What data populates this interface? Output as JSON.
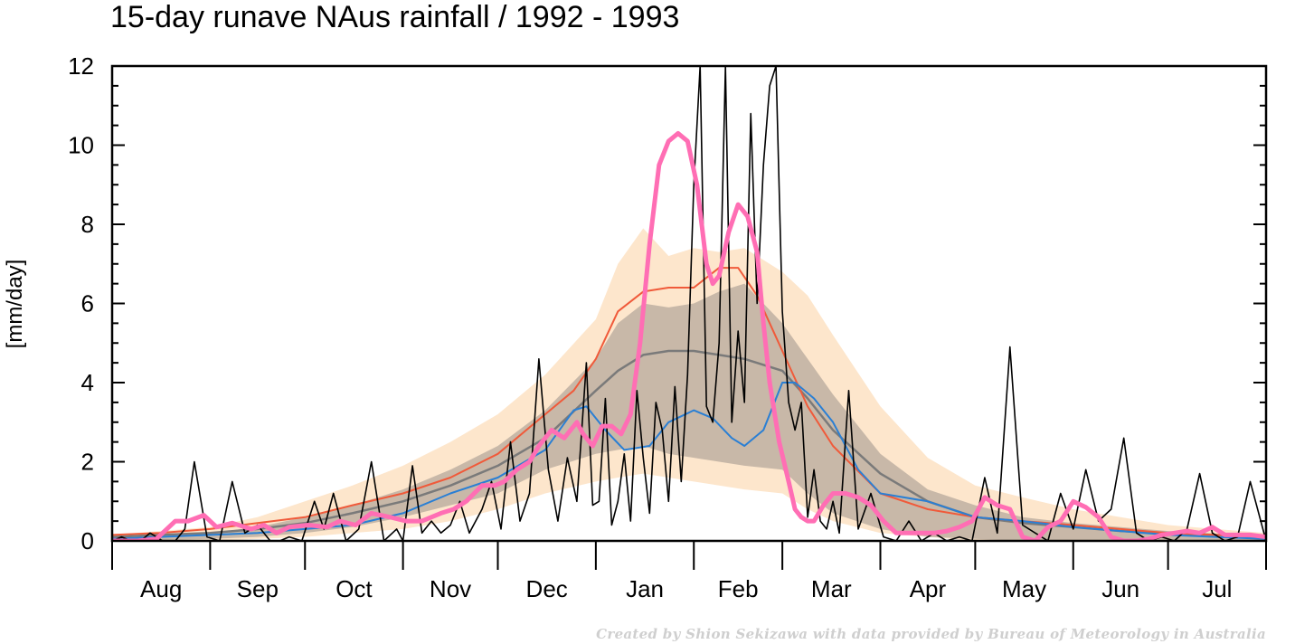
{
  "title": "15-day runave NAus rainfall  /  1992 - 1993",
  "credit": "Created by Shion Sekizawa with data provided by Bureau of Meteorology in Australia",
  "colors": {
    "outer_band": "#fde6cc",
    "inner_band": "#c8b8a8",
    "climatology": "#7a7a7a",
    "red_line": "#f05a3a",
    "blue_line": "#2a7fd4",
    "daily": "#000000",
    "runave": "#ff6eb4"
  },
  "chart_data": {
    "type": "line",
    "title": "15-day runave NAus rainfall  /  1992 - 1993",
    "xlabel": "",
    "ylabel": "[mm/day]",
    "ylim": [
      0,
      12
    ],
    "yticks": [
      0,
      2,
      4,
      6,
      8,
      10,
      12
    ],
    "xlim": [
      0,
      365
    ],
    "month_ticks": [
      0,
      31,
      61,
      92,
      122,
      153,
      184,
      212,
      243,
      273,
      304,
      334,
      365
    ],
    "month_labels": [
      "Aug",
      "Sep",
      "Oct",
      "Nov",
      "Dec",
      "Jan",
      "Feb",
      "Mar",
      "Apr",
      "May",
      "Jun",
      "Jul"
    ],
    "outer_band": {
      "x": [
        0,
        15,
        31,
        46,
        61,
        76,
        92,
        107,
        122,
        137,
        153,
        160,
        168,
        176,
        184,
        192,
        200,
        212,
        220,
        228,
        243,
        258,
        273,
        288,
        304,
        319,
        334,
        349,
        365
      ],
      "upper": [
        0.15,
        0.25,
        0.35,
        0.6,
        1.0,
        1.4,
        1.9,
        2.5,
        3.2,
        4.2,
        5.6,
        7.0,
        7.9,
        7.2,
        7.4,
        7.3,
        7.4,
        6.8,
        6.2,
        5.2,
        3.4,
        2.1,
        1.4,
        1.1,
        0.8,
        0.6,
        0.4,
        0.3,
        0.2
      ],
      "lower": [
        0.0,
        0.0,
        0.0,
        0.05,
        0.1,
        0.2,
        0.3,
        0.5,
        0.8,
        1.2,
        1.5,
        1.6,
        1.7,
        1.6,
        1.5,
        1.4,
        1.3,
        1.2,
        0.8,
        0.5,
        0.2,
        0.1,
        0.0,
        0.0,
        0.0,
        0.0,
        0.0,
        0.0,
        0.0
      ]
    },
    "inner_band": {
      "x": [
        0,
        15,
        31,
        46,
        61,
        76,
        92,
        107,
        122,
        137,
        153,
        160,
        168,
        176,
        184,
        192,
        200,
        212,
        220,
        228,
        243,
        258,
        273,
        288,
        304,
        319,
        334,
        349,
        365
      ],
      "upper": [
        0.08,
        0.12,
        0.2,
        0.35,
        0.6,
        0.9,
        1.3,
        1.8,
        2.4,
        3.3,
        4.6,
        5.5,
        6.0,
        5.9,
        6.0,
        6.3,
        6.5,
        5.5,
        4.6,
        3.7,
        2.2,
        1.3,
        0.9,
        0.6,
        0.45,
        0.35,
        0.25,
        0.18,
        0.12
      ],
      "lower": [
        0.0,
        0.02,
        0.05,
        0.1,
        0.2,
        0.35,
        0.6,
        0.9,
        1.2,
        1.8,
        2.2,
        2.3,
        2.4,
        2.2,
        2.1,
        2.0,
        1.9,
        1.8,
        1.2,
        0.7,
        0.3,
        0.1,
        0.05,
        0.0,
        0.0,
        0.0,
        0.0,
        0.0,
        0.0
      ]
    },
    "series": [
      {
        "key": "climatology",
        "x": [
          0,
          15,
          31,
          46,
          61,
          76,
          92,
          107,
          122,
          137,
          153,
          160,
          168,
          176,
          184,
          192,
          200,
          212,
          220,
          228,
          243,
          258,
          273,
          288,
          304,
          319,
          334,
          349,
          365
        ],
        "y": [
          0.1,
          0.15,
          0.2,
          0.3,
          0.45,
          0.7,
          1.0,
          1.4,
          1.9,
          2.6,
          3.8,
          4.3,
          4.7,
          4.8,
          4.8,
          4.7,
          4.6,
          4.3,
          3.6,
          2.8,
          1.7,
          1.0,
          0.6,
          0.45,
          0.35,
          0.25,
          0.2,
          0.15,
          0.1
        ]
      },
      {
        "key": "red_line",
        "x": [
          0,
          15,
          31,
          46,
          61,
          76,
          92,
          107,
          122,
          137,
          146,
          153,
          160,
          168,
          176,
          184,
          192,
          198,
          204,
          212,
          220,
          228,
          243,
          258,
          273,
          288,
          304,
          319,
          334,
          349,
          365
        ],
        "y": [
          0.15,
          0.2,
          0.3,
          0.45,
          0.6,
          0.9,
          1.2,
          1.6,
          2.2,
          3.2,
          3.8,
          4.6,
          5.8,
          6.3,
          6.4,
          6.4,
          6.9,
          6.9,
          6.2,
          4.8,
          3.4,
          2.4,
          1.2,
          0.8,
          0.6,
          0.5,
          0.4,
          0.3,
          0.2,
          0.15,
          0.1
        ]
      },
      {
        "key": "blue_line",
        "x": [
          0,
          15,
          31,
          46,
          61,
          76,
          92,
          107,
          122,
          137,
          146,
          150,
          156,
          162,
          170,
          176,
          184,
          190,
          196,
          200,
          206,
          212,
          216,
          222,
          228,
          236,
          243,
          258,
          273,
          288,
          304,
          319,
          334,
          349,
          365
        ],
        "y": [
          0.05,
          0.1,
          0.15,
          0.2,
          0.3,
          0.4,
          0.7,
          1.2,
          1.6,
          2.3,
          3.3,
          3.4,
          2.8,
          2.3,
          2.4,
          3.0,
          3.3,
          3.1,
          2.6,
          2.4,
          2.8,
          4.0,
          4.0,
          3.6,
          3.0,
          1.8,
          1.2,
          1.0,
          0.6,
          0.5,
          0.35,
          0.25,
          0.15,
          0.1,
          0.05
        ]
      },
      {
        "key": "daily",
        "x": [
          0,
          3,
          6,
          9,
          12,
          16,
          20,
          23,
          26,
          30,
          34,
          38,
          42,
          46,
          50,
          53,
          56,
          60,
          64,
          67,
          70,
          74,
          78,
          82,
          86,
          90,
          92,
          95,
          98,
          101,
          104,
          107,
          110,
          113,
          117,
          120,
          123,
          126,
          129,
          132,
          135,
          138,
          141,
          144,
          147,
          150,
          152,
          154,
          156,
          158,
          160,
          162,
          164,
          166,
          168,
          170,
          172,
          174,
          176,
          178,
          180,
          182,
          184,
          186,
          188,
          190,
          192,
          194,
          196,
          198,
          200,
          202,
          204,
          206,
          208,
          210,
          212,
          214,
          216,
          218,
          220,
          222,
          224,
          226,
          228,
          230,
          233,
          236,
          240,
          244,
          248,
          252,
          256,
          260,
          264,
          268,
          272,
          276,
          280,
          284,
          288,
          292,
          296,
          300,
          304,
          308,
          312,
          316,
          320,
          324,
          328,
          332,
          336,
          340,
          344,
          348,
          352,
          356,
          360,
          365
        ],
        "y": [
          0.0,
          0.1,
          0.0,
          0.0,
          0.2,
          0.0,
          0.0,
          0.3,
          2.0,
          0.1,
          0.0,
          1.5,
          0.2,
          0.4,
          0.0,
          0.0,
          0.1,
          0.0,
          1.0,
          0.3,
          1.2,
          0.0,
          0.3,
          2.0,
          0.0,
          0.3,
          0.0,
          1.9,
          0.2,
          0.5,
          0.2,
          0.4,
          1.0,
          0.2,
          0.8,
          1.5,
          0.3,
          2.5,
          0.5,
          1.2,
          4.6,
          1.8,
          0.5,
          2.1,
          1.0,
          4.5,
          0.9,
          1.0,
          3.6,
          0.4,
          1.0,
          2.2,
          0.5,
          3.8,
          2.1,
          0.7,
          3.5,
          2.8,
          1.0,
          3.9,
          1.5,
          4.2,
          9.0,
          12.5,
          3.4,
          3.0,
          5.0,
          12.5,
          3.0,
          5.3,
          3.5,
          10.8,
          6.0,
          9.5,
          11.5,
          12.5,
          5.8,
          3.5,
          2.8,
          3.5,
          0.6,
          1.8,
          0.5,
          0.3,
          1.0,
          0.2,
          3.8,
          0.3,
          1.2,
          0.1,
          0.0,
          0.5,
          0.0,
          0.2,
          0.0,
          0.1,
          0.0,
          1.6,
          0.2,
          4.9,
          0.4,
          0.2,
          0.0,
          1.2,
          0.3,
          1.8,
          0.5,
          0.8,
          2.6,
          0.2,
          0.0,
          0.1,
          0.0,
          0.3,
          1.7,
          0.2,
          0.0,
          0.1,
          1.5,
          0.0
        ]
      },
      {
        "key": "runave",
        "x": [
          0,
          8,
          14,
          20,
          24,
          29,
          33,
          38,
          44,
          48,
          52,
          56,
          62,
          68,
          72,
          77,
          82,
          88,
          93,
          98,
          104,
          108,
          112,
          117,
          121,
          124,
          128,
          132,
          135,
          139,
          143,
          147,
          149,
          152,
          155,
          158,
          161,
          164,
          167,
          170,
          173,
          176,
          179,
          182,
          185,
          188,
          190,
          192,
          195,
          198,
          201,
          204,
          206,
          208,
          211,
          214,
          216,
          218,
          220,
          222,
          225,
          228,
          232,
          236,
          240,
          244,
          248,
          252,
          256,
          260,
          264,
          268,
          272,
          276,
          280,
          284,
          288,
          292,
          296,
          300,
          304,
          308,
          312,
          316,
          320,
          324,
          328,
          332,
          336,
          340,
          344,
          348,
          352,
          356,
          360,
          365
        ],
        "y": [
          0.0,
          0.0,
          0.05,
          0.5,
          0.5,
          0.65,
          0.35,
          0.45,
          0.3,
          0.4,
          0.2,
          0.35,
          0.4,
          0.35,
          0.5,
          0.4,
          0.7,
          0.6,
          0.5,
          0.5,
          0.7,
          0.8,
          1.0,
          1.4,
          1.4,
          1.5,
          1.8,
          2.0,
          2.4,
          2.8,
          2.6,
          3.0,
          2.7,
          2.4,
          2.9,
          2.9,
          2.7,
          3.2,
          5.0,
          7.5,
          9.5,
          10.1,
          10.3,
          10.1,
          9.0,
          7.0,
          6.5,
          6.7,
          7.8,
          8.5,
          8.2,
          7.3,
          5.5,
          4.0,
          2.5,
          1.5,
          0.8,
          0.6,
          0.5,
          0.5,
          0.9,
          1.2,
          1.2,
          1.1,
          0.9,
          0.5,
          0.2,
          0.2,
          0.2,
          0.2,
          0.25,
          0.35,
          0.5,
          1.1,
          0.9,
          0.8,
          0.1,
          0.0,
          0.35,
          0.5,
          1.0,
          0.85,
          0.6,
          0.1,
          0.0,
          0.0,
          0.05,
          0.15,
          0.2,
          0.25,
          0.2,
          0.35,
          0.15,
          0.15,
          0.15,
          0.1
        ]
      }
    ]
  }
}
